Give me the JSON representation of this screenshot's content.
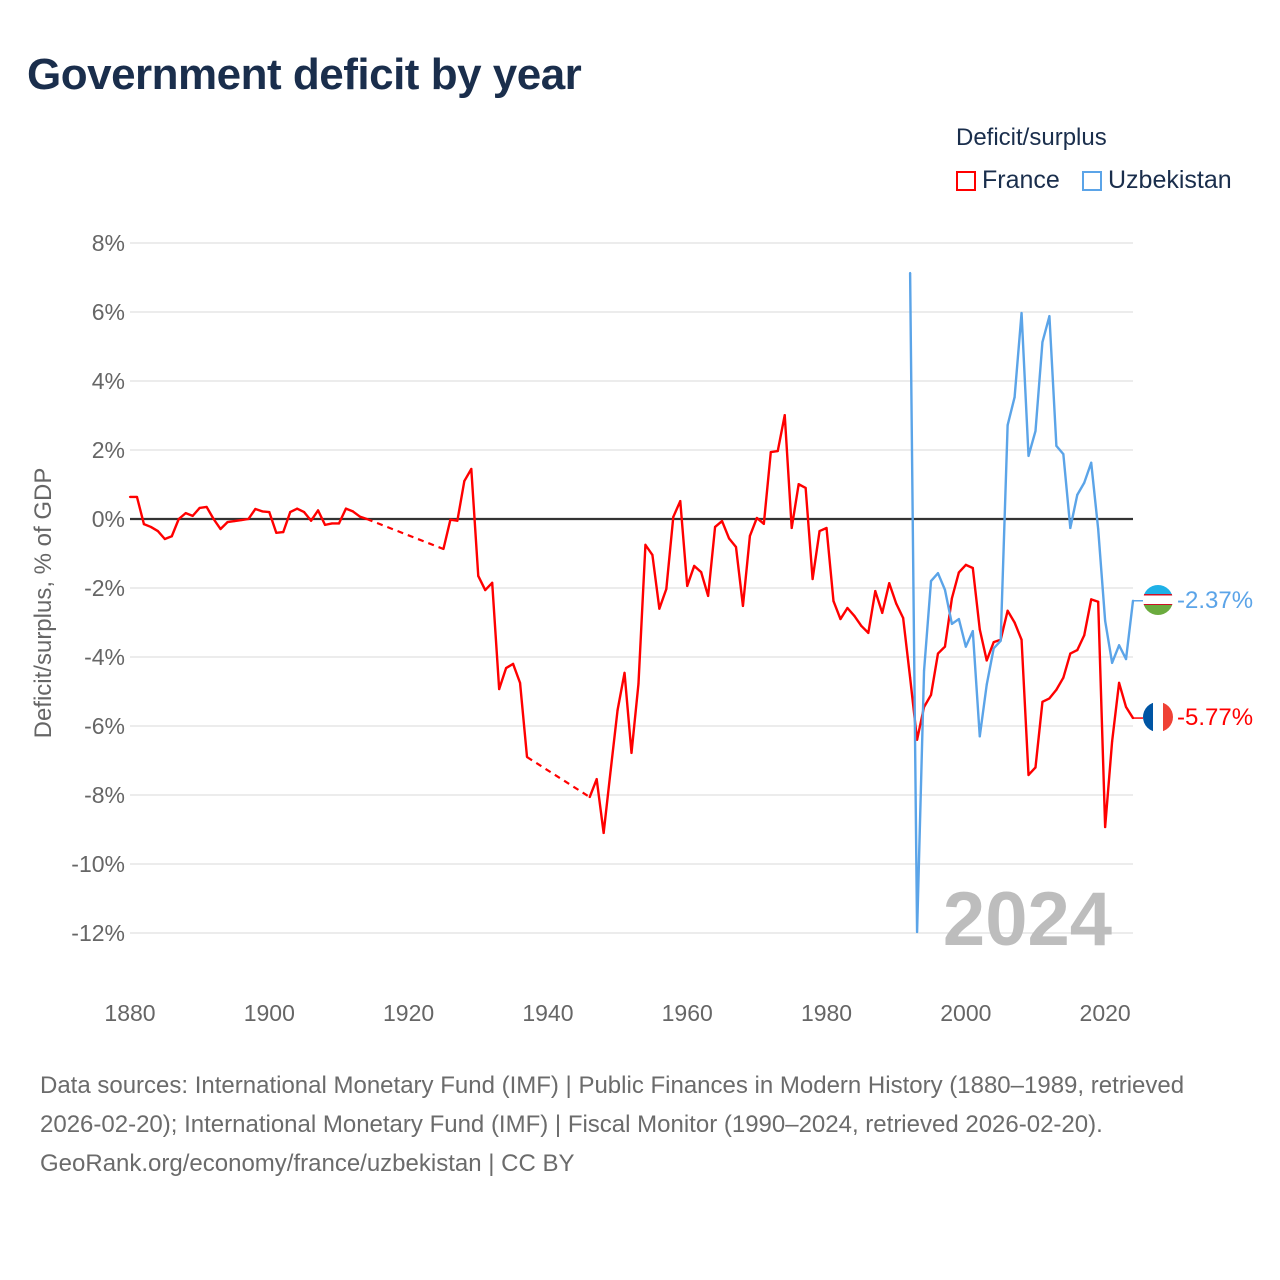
{
  "title": "Government deficit by year",
  "footer": {
    "sources": "Data sources: International Monetary Fund (IMF) | Public Finances in Modern History (1880–1989, retrieved 2026-02-20); International Monetary Fund (IMF) | Fiscal Monitor (1990–2024, retrieved 2026-02-20).",
    "credit": "GeoRank.org/economy/france/uzbekistan | CC BY"
  },
  "chart_data": {
    "type": "line",
    "title": "Government deficit by year",
    "xlabel": "",
    "ylabel": "Deficit/surplus, % of GDP",
    "xlim": [
      1880,
      2024
    ],
    "ylim": [
      -12,
      8
    ],
    "y_ticks": [
      8,
      6,
      4,
      2,
      0,
      -2,
      -4,
      -6,
      -8,
      -10,
      -12
    ],
    "y_tick_labels": [
      "8%",
      "6%",
      "4%",
      "2%",
      "0%",
      "-2%",
      "-4%",
      "-6%",
      "-8%",
      "-10%",
      "-12%"
    ],
    "x_ticks": [
      1880,
      1900,
      1920,
      1940,
      1960,
      1980,
      2000,
      2020
    ],
    "x_tick_labels": [
      "1880",
      "1900",
      "1920",
      "1940",
      "1960",
      "1980",
      "2000",
      "2020"
    ],
    "grid": true,
    "legend_title": "Deficit/surplus",
    "legend_position": "top-right",
    "year_watermark": "2024",
    "series": [
      {
        "name": "France",
        "color": "#ff0000",
        "start_year": 1880,
        "end_label": "-5.77%",
        "flag": "france-flag",
        "values": [
          0.64,
          0.64,
          -0.15,
          -0.23,
          -0.35,
          -0.58,
          -0.5,
          0,
          0.17,
          0.09,
          0.32,
          0.35,
          0,
          -0.29,
          -0.09,
          -0.06,
          -0.03,
          0,
          0.29,
          0.22,
          0.2,
          -0.4,
          -0.38,
          0.2,
          0.3,
          0.2,
          -0.05,
          0.25,
          -0.17,
          -0.13,
          -0.13,
          0.3,
          0.22,
          0.07,
          0,
          null,
          null,
          null,
          null,
          null,
          null,
          null,
          null,
          null,
          null,
          -0.87,
          -0.02,
          -0.05,
          1.1,
          1.45,
          -1.65,
          -2.06,
          -1.85,
          -4.93,
          -4.32,
          -4.2,
          -4.75,
          -6.9,
          null,
          null,
          null,
          null,
          null,
          null,
          null,
          null,
          -8.06,
          -7.54,
          -9.1,
          -7.3,
          -5.54,
          -4.46,
          -6.78,
          -4.78,
          -0.75,
          -1.04,
          -2.6,
          -2.03,
          0.06,
          0.52,
          -1.94,
          -1.36,
          -1.54,
          -2.23,
          -0.23,
          -0.06,
          -0.56,
          -0.81,
          -2.52,
          -0.49,
          0.03,
          -0.14,
          1.94,
          1.97,
          3.01,
          -0.26,
          1.01,
          0.9,
          -1.74,
          -0.35,
          -0.26,
          -2.38,
          -2.9,
          -2.58,
          -2.81,
          -3.1,
          -3.3,
          -2.09,
          -2.72,
          -1.86,
          -2.45,
          -2.87,
          -4.6,
          -6.4,
          -5.45,
          -5.1,
          -3.9,
          -3.7,
          -2.3,
          -1.55,
          -1.33,
          -1.42,
          -3.2,
          -4.1,
          -3.57,
          -3.5,
          -2.66,
          -3.0,
          -3.5,
          -7.42,
          -7.2,
          -5.3,
          -5.2,
          -4.95,
          -4.6,
          -3.9,
          -3.8,
          -3.37,
          -2.33,
          -2.4,
          -8.93,
          -6.45,
          -4.75,
          -5.45,
          -5.77
        ]
      },
      {
        "name": "Uzbekistan",
        "color": "#5ba4e8",
        "start_year": 1992,
        "end_label": "-2.37%",
        "flag": "uzbekistan-flag",
        "values": [
          7.13,
          -11.97,
          -4.4,
          -1.8,
          -1.57,
          -2.05,
          -3.04,
          -2.9,
          -3.7,
          -3.25,
          -6.3,
          -4.8,
          -3.75,
          -3.53,
          2.72,
          3.53,
          5.97,
          1.83,
          2.55,
          5.13,
          5.88,
          2.12,
          1.88,
          -0.26,
          0.7,
          1.05,
          1.63,
          -0.29,
          -2.95,
          -4.17,
          -3.66,
          -4.06,
          -2.37
        ]
      }
    ]
  }
}
